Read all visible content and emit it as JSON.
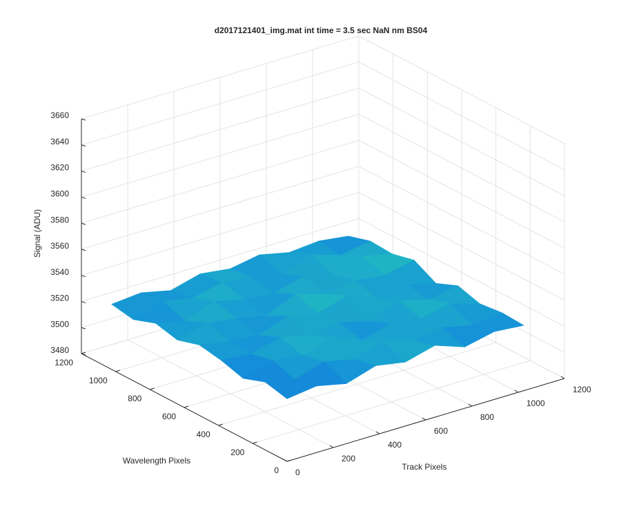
{
  "chart_data": {
    "type": "surface",
    "title": "d2017121401_img.mat int time = 3.5 sec  NaN nm BS04",
    "xlabel": "Track Pixels",
    "ylabel": "Wavelength Pixels",
    "zlabel": "Signal (ADU)",
    "x": [
      0,
      128,
      256,
      384,
      512,
      640,
      768,
      896,
      1024
    ],
    "y": [
      0,
      128,
      256,
      384,
      512,
      640,
      768,
      896,
      1024
    ],
    "z": [
      [
        3528,
        3531,
        3526,
        3533,
        3529,
        3535,
        3527,
        3532,
        3530
      ],
      [
        3532,
        3527,
        3534,
        3529,
        3536,
        3530,
        3533,
        3528,
        3531
      ],
      [
        3526,
        3533,
        3530,
        3537,
        3528,
        3534,
        3531,
        3536,
        3529
      ],
      [
        3531,
        3529,
        3535,
        3530,
        3533,
        3527,
        3536,
        3530,
        3534
      ],
      [
        3534,
        3530,
        3528,
        3536,
        3531,
        3538,
        3529,
        3533,
        3527
      ],
      [
        3529,
        3535,
        3532,
        3527,
        3537,
        3530,
        3534,
        3531,
        3536
      ],
      [
        3533,
        3528,
        3536,
        3531,
        3529,
        3535,
        3530,
        3537,
        3532
      ],
      [
        3527,
        3534,
        3530,
        3535,
        3532,
        3528,
        3536,
        3529,
        3533
      ],
      [
        3530,
        3532,
        3527,
        3533,
        3530,
        3534,
        3529,
        3531,
        3528
      ]
    ],
    "colormap": [
      "#0c52d9",
      "#1592d8",
      "#1fb4c4",
      "#3cc49a"
    ],
    "xlim": [
      0,
      1200
    ],
    "xticks": [
      0,
      200,
      400,
      600,
      800,
      1000,
      1200
    ],
    "ylim": [
      0,
      1200
    ],
    "yticks": [
      0,
      200,
      400,
      600,
      800,
      1000,
      1200
    ],
    "zlim": [
      3480,
      3660
    ],
    "zticks": [
      3480,
      3500,
      3520,
      3540,
      3560,
      3580,
      3600,
      3620,
      3640,
      3660
    ],
    "grid": true
  }
}
